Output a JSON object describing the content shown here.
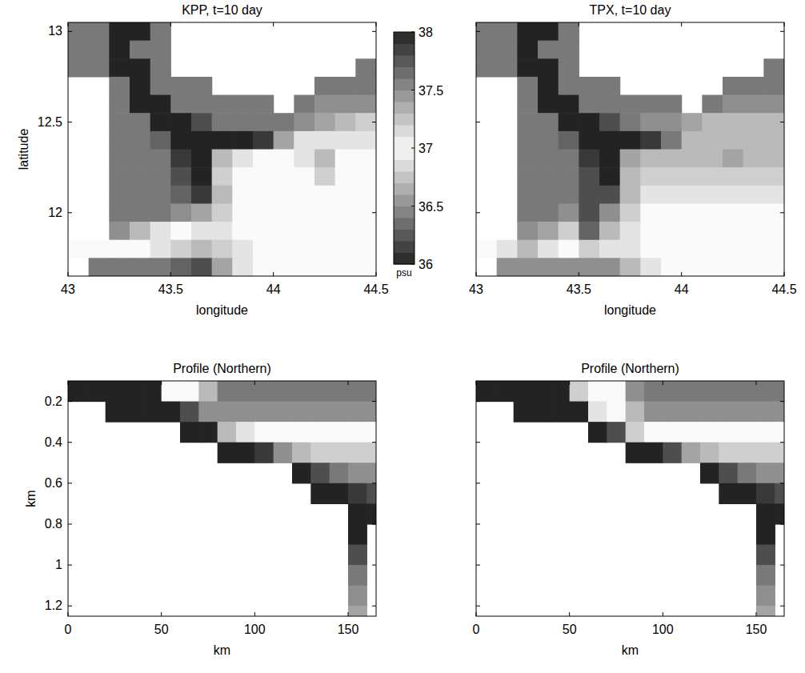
{
  "chart_data": [
    {
      "type": "heatmap",
      "title": "KPP, t=10 day",
      "xlabel": "longitude",
      "ylabel": "latitude",
      "xlim": [
        43,
        44.5
      ],
      "ylim": [
        11.65,
        13.05
      ],
      "xticks": [
        43,
        43.5,
        44,
        44.5
      ],
      "yticks": [
        12,
        12.5,
        13
      ],
      "x": [
        43.05,
        43.15,
        43.25,
        43.35,
        43.45,
        43.55,
        43.65,
        43.75,
        43.85,
        43.95,
        44.05,
        44.15,
        44.25,
        44.35,
        44.45
      ],
      "y": [
        13,
        12.9,
        12.8,
        12.7,
        12.6,
        12.5,
        12.4,
        12.3,
        12.2,
        12.1,
        12,
        11.9,
        11.8,
        11.7
      ],
      "cells": [
        [
          37.6,
          37.6,
          38,
          38,
          37.6,
          null,
          null,
          null,
          null,
          null,
          null,
          null,
          null,
          null,
          null
        ],
        [
          37.6,
          37.6,
          38,
          37.6,
          37.6,
          null,
          null,
          null,
          null,
          null,
          null,
          null,
          null,
          null,
          null
        ],
        [
          37.6,
          37.6,
          38,
          38,
          37.6,
          null,
          null,
          null,
          null,
          null,
          null,
          null,
          null,
          null,
          37.6
        ],
        [
          null,
          null,
          37.6,
          38,
          37.6,
          37.6,
          37.6,
          null,
          null,
          null,
          null,
          null,
          37.6,
          37.6,
          37.6
        ],
        [
          null,
          null,
          37.6,
          38,
          38,
          37.6,
          37.6,
          37.6,
          37.6,
          37.6,
          null,
          37.6,
          37.5,
          37.5,
          37.5
        ],
        [
          null,
          null,
          37.6,
          37.6,
          38,
          38,
          37.8,
          37.6,
          37.6,
          37.6,
          37.6,
          37.5,
          37.4,
          37.3,
          37.2
        ],
        [
          null,
          null,
          37.6,
          37.6,
          37.7,
          38,
          38,
          38,
          38,
          37.9,
          37.4,
          37.1,
          37.1,
          37.1,
          37.1
        ],
        [
          null,
          null,
          37.6,
          37.6,
          37.6,
          37.9,
          38,
          37.3,
          36.9,
          37,
          37,
          37.1,
          37.3,
          37,
          37
        ],
        [
          null,
          null,
          37.6,
          37.6,
          37.6,
          37.8,
          38,
          37.2,
          37,
          37,
          37,
          37,
          37.2,
          37,
          37
        ],
        [
          null,
          null,
          37.6,
          37.6,
          37.6,
          37.7,
          37.9,
          37.3,
          37,
          37,
          37,
          37,
          37,
          37,
          37
        ],
        [
          null,
          null,
          37.6,
          37.6,
          37.6,
          37.5,
          37.4,
          37.2,
          37,
          37,
          37,
          37,
          37,
          37,
          37
        ],
        [
          null,
          null,
          37.5,
          37.3,
          37.1,
          37,
          37.1,
          37.1,
          37,
          37,
          37,
          37,
          37,
          37,
          37
        ],
        [
          37,
          37,
          37,
          37,
          37.1,
          37.2,
          37.3,
          37.2,
          37.1,
          37,
          37,
          37,
          37,
          37,
          37
        ],
        [
          null,
          37.6,
          37.6,
          37.6,
          37.6,
          37.7,
          37.8,
          37.4,
          37.1,
          37,
          37,
          37,
          37,
          37,
          37
        ]
      ],
      "colorbar_range": [
        36,
        38
      ],
      "colorbar_ticks": [
        36,
        36.5,
        37,
        37.5,
        38
      ],
      "colorbar_label": "psu"
    },
    {
      "type": "heatmap",
      "title": "TPX, t=10 day",
      "xlabel": "longitude",
      "tick_labels": "x",
      "xlim": [
        43,
        44.5
      ],
      "ylim": [
        11.65,
        13.05
      ],
      "xticks": [
        43,
        43.5,
        44,
        44.5
      ],
      "yticks": [
        12,
        12.5,
        13
      ],
      "x": [
        43.05,
        43.15,
        43.25,
        43.35,
        43.45,
        43.55,
        43.65,
        43.75,
        43.85,
        43.95,
        44.05,
        44.15,
        44.25,
        44.35,
        44.45
      ],
      "y": [
        13,
        12.9,
        12.8,
        12.7,
        12.6,
        12.5,
        12.4,
        12.3,
        12.2,
        12.1,
        12,
        11.9,
        11.8,
        11.7
      ],
      "cells": [
        [
          37.6,
          37.6,
          38,
          38,
          37.6,
          null,
          null,
          null,
          null,
          null,
          null,
          null,
          null,
          null,
          null
        ],
        [
          37.6,
          37.6,
          38,
          37.6,
          37.6,
          null,
          null,
          null,
          null,
          null,
          null,
          null,
          null,
          null,
          null
        ],
        [
          37.6,
          37.6,
          38,
          38,
          37.6,
          null,
          null,
          null,
          null,
          null,
          null,
          null,
          null,
          null,
          37.6
        ],
        [
          null,
          null,
          37.6,
          38,
          37.6,
          37.6,
          37.6,
          null,
          null,
          null,
          null,
          null,
          37.6,
          37.6,
          37.6
        ],
        [
          null,
          null,
          37.6,
          38,
          38,
          37.6,
          37.6,
          37.6,
          37.6,
          37.6,
          null,
          37.6,
          37.5,
          37.5,
          37.5
        ],
        [
          null,
          null,
          37.6,
          37.6,
          38,
          38,
          37.8,
          37.6,
          37.5,
          37.5,
          37.4,
          37.3,
          37.3,
          37.3,
          37.3
        ],
        [
          null,
          null,
          37.6,
          37.6,
          37.7,
          38,
          38,
          38,
          37.9,
          37.6,
          37.3,
          37.3,
          37.3,
          37.3,
          37.3
        ],
        [
          null,
          null,
          37.6,
          37.6,
          37.6,
          37.9,
          38,
          37.4,
          37.3,
          37.3,
          37.3,
          37.3,
          37.4,
          37.3,
          37.3
        ],
        [
          null,
          null,
          37.6,
          37.6,
          37.6,
          37.8,
          38,
          37.3,
          37.2,
          37.2,
          37.2,
          37.2,
          37.2,
          37.2,
          37.2
        ],
        [
          null,
          null,
          37.6,
          37.6,
          37.6,
          37.8,
          37.8,
          37.3,
          37.1,
          37.1,
          37.1,
          37.1,
          37.1,
          37.1,
          37.1
        ],
        [
          null,
          null,
          37.6,
          37.6,
          37.5,
          37.8,
          37.5,
          37.2,
          37,
          37,
          37,
          37,
          37,
          37,
          37
        ],
        [
          null,
          null,
          37.5,
          37.4,
          37.2,
          37.7,
          37.3,
          37.1,
          37,
          37,
          37,
          37,
          37,
          37,
          37
        ],
        [
          37,
          37.1,
          37.3,
          37.1,
          37,
          37.2,
          37.1,
          37.1,
          37,
          37,
          37,
          37,
          37,
          37,
          37
        ],
        [
          null,
          37.5,
          37.5,
          37.5,
          37.5,
          37.5,
          37.5,
          37.3,
          37.1,
          37,
          37,
          37,
          37,
          37,
          37
        ]
      ]
    },
    {
      "type": "heatmap",
      "title": "Profile (Northern)",
      "xlabel": "km",
      "ylabel": "km",
      "xlim": [
        0,
        165
      ],
      "ylim": [
        1.25,
        0.1
      ],
      "xticks": [
        0,
        50,
        100,
        150
      ],
      "yticks": [
        0.2,
        0.4,
        0.6,
        0.8,
        1,
        1.2
      ],
      "x": [
        5,
        15,
        25,
        35,
        45,
        55,
        65,
        75,
        85,
        95,
        105,
        115,
        125,
        135,
        145,
        155,
        165
      ],
      "y": [
        0.15,
        0.25,
        0.35,
        0.45,
        0.55,
        0.65,
        0.75,
        0.85,
        0.95,
        1.05,
        1.15,
        1.25
      ],
      "cells": [
        [
          38,
          38,
          38,
          38,
          38,
          37,
          37,
          37.3,
          37.6,
          37.6,
          37.6,
          37.6,
          37.6,
          37.6,
          37.6,
          37.6,
          37.6
        ],
        [
          null,
          null,
          38,
          38,
          38,
          38,
          37.8,
          37.5,
          37.5,
          37.5,
          37.5,
          37.5,
          37.5,
          37.5,
          37.5,
          37.5,
          37.5
        ],
        [
          null,
          null,
          null,
          null,
          null,
          null,
          38,
          38,
          37.3,
          37.1,
          37,
          37,
          37,
          37,
          37,
          37,
          37
        ],
        [
          null,
          null,
          null,
          null,
          null,
          null,
          null,
          null,
          38,
          38,
          37.9,
          37.5,
          37.3,
          37.2,
          37.2,
          37.2,
          37.2
        ],
        [
          null,
          null,
          null,
          null,
          null,
          null,
          null,
          null,
          null,
          null,
          null,
          null,
          38,
          37.8,
          37.6,
          37.5,
          37.5
        ],
        [
          null,
          null,
          null,
          null,
          null,
          null,
          null,
          null,
          null,
          null,
          null,
          null,
          null,
          38,
          38,
          37.9,
          37.8
        ],
        [
          null,
          null,
          null,
          null,
          null,
          null,
          null,
          null,
          null,
          null,
          null,
          null,
          null,
          null,
          null,
          38,
          38
        ],
        [
          null,
          null,
          null,
          null,
          null,
          null,
          null,
          null,
          null,
          null,
          null,
          null,
          null,
          null,
          null,
          38,
          null
        ],
        [
          null,
          null,
          null,
          null,
          null,
          null,
          null,
          null,
          null,
          null,
          null,
          null,
          null,
          null,
          null,
          37.8,
          null
        ],
        [
          null,
          null,
          null,
          null,
          null,
          null,
          null,
          null,
          null,
          null,
          null,
          null,
          null,
          null,
          null,
          37.6,
          null
        ],
        [
          null,
          null,
          null,
          null,
          null,
          null,
          null,
          null,
          null,
          null,
          null,
          null,
          null,
          null,
          null,
          37.5,
          null
        ],
        [
          null,
          null,
          null,
          null,
          null,
          null,
          null,
          null,
          null,
          null,
          null,
          null,
          null,
          null,
          null,
          37.4,
          null
        ]
      ]
    },
    {
      "type": "heatmap",
      "title": "Profile (Northern)",
      "xlabel": "km",
      "tick_labels": "x",
      "xlim": [
        0,
        165
      ],
      "ylim": [
        1.25,
        0.1
      ],
      "xticks": [
        0,
        50,
        100,
        150
      ],
      "yticks": [
        0.2,
        0.4,
        0.6,
        0.8,
        1,
        1.2
      ],
      "x": [
        5,
        15,
        25,
        35,
        45,
        55,
        65,
        75,
        85,
        95,
        105,
        115,
        125,
        135,
        145,
        155,
        165
      ],
      "y": [
        0.15,
        0.25,
        0.35,
        0.45,
        0.55,
        0.65,
        0.75,
        0.85,
        0.95,
        1.05,
        1.15,
        1.25
      ],
      "cells": [
        [
          38,
          38,
          38,
          38,
          38,
          37.2,
          37,
          37,
          37.5,
          37.6,
          37.6,
          37.6,
          37.6,
          37.6,
          37.6,
          37.6,
          37.6
        ],
        [
          null,
          null,
          38,
          38,
          38,
          38,
          37.1,
          37,
          37.3,
          37.5,
          37.5,
          37.5,
          37.5,
          37.5,
          37.5,
          37.5,
          37.5
        ],
        [
          null,
          null,
          null,
          null,
          null,
          null,
          38,
          37.8,
          37.2,
          37,
          37,
          37,
          37,
          37,
          37,
          37,
          37
        ],
        [
          null,
          null,
          null,
          null,
          null,
          null,
          null,
          null,
          38,
          38,
          37.8,
          37.4,
          37.3,
          37.2,
          37.2,
          37.2,
          37.2
        ],
        [
          null,
          null,
          null,
          null,
          null,
          null,
          null,
          null,
          null,
          null,
          null,
          null,
          38,
          37.8,
          37.6,
          37.5,
          37.5
        ],
        [
          null,
          null,
          null,
          null,
          null,
          null,
          null,
          null,
          null,
          null,
          null,
          null,
          null,
          38,
          38,
          37.9,
          37.8
        ],
        [
          null,
          null,
          null,
          null,
          null,
          null,
          null,
          null,
          null,
          null,
          null,
          null,
          null,
          null,
          null,
          38,
          38
        ],
        [
          null,
          null,
          null,
          null,
          null,
          null,
          null,
          null,
          null,
          null,
          null,
          null,
          null,
          null,
          null,
          38,
          null
        ],
        [
          null,
          null,
          null,
          null,
          null,
          null,
          null,
          null,
          null,
          null,
          null,
          null,
          null,
          null,
          null,
          37.8,
          null
        ],
        [
          null,
          null,
          null,
          null,
          null,
          null,
          null,
          null,
          null,
          null,
          null,
          null,
          null,
          null,
          null,
          37.6,
          null
        ],
        [
          null,
          null,
          null,
          null,
          null,
          null,
          null,
          null,
          null,
          null,
          null,
          null,
          null,
          null,
          null,
          37.5,
          null
        ],
        [
          null,
          null,
          null,
          null,
          null,
          null,
          null,
          null,
          null,
          null,
          null,
          null,
          null,
          null,
          null,
          37.4,
          null
        ]
      ]
    }
  ]
}
